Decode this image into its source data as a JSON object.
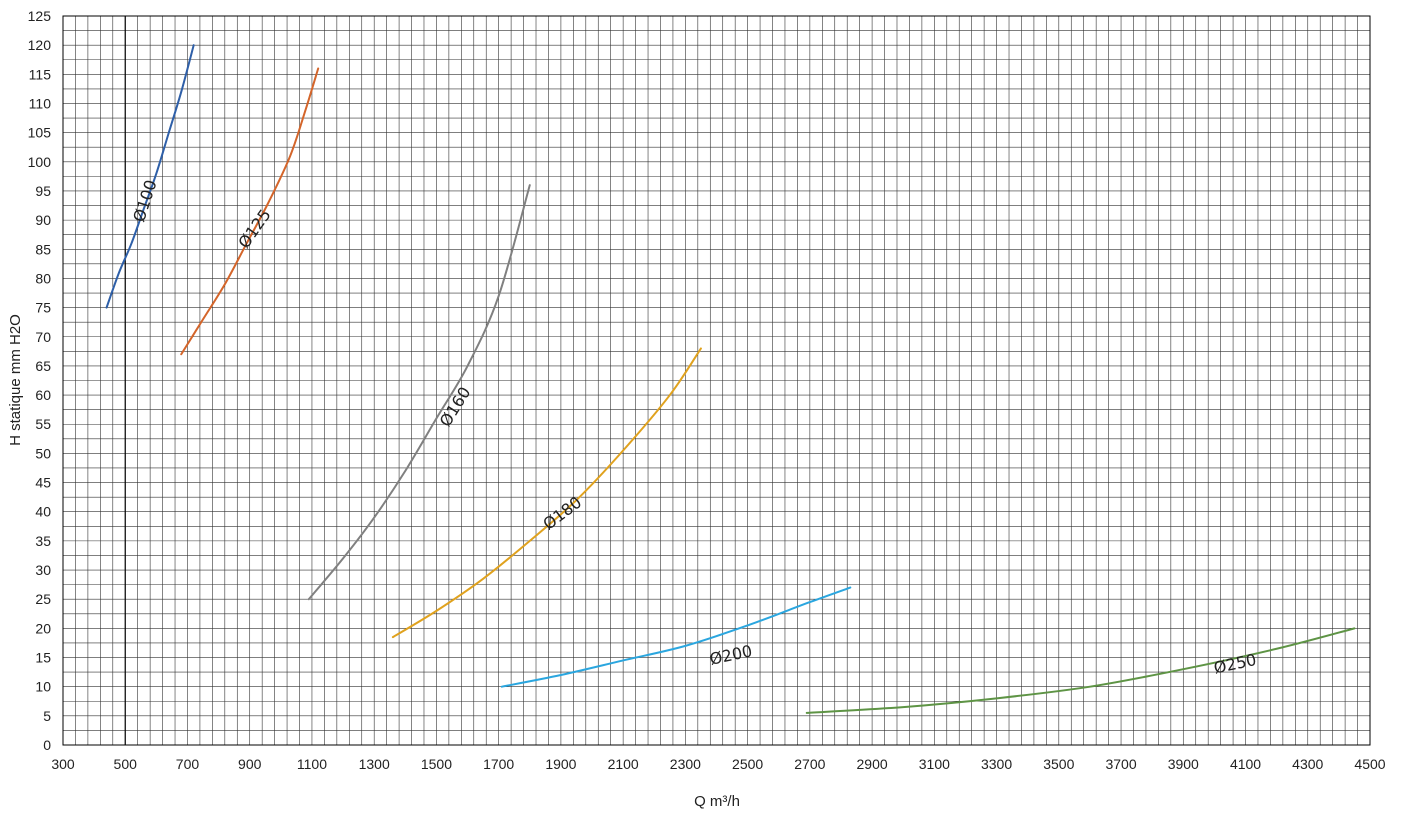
{
  "chart_data": {
    "type": "line",
    "xlabel": "Q m³/h",
    "ylabel": "H statique mm H2O",
    "xlim": [
      300,
      4500
    ],
    "ylim": [
      0,
      125
    ],
    "x_ticks": [
      300,
      500,
      700,
      900,
      1100,
      1300,
      1500,
      1700,
      1900,
      2100,
      2300,
      2500,
      2700,
      2900,
      3100,
      3300,
      3500,
      3700,
      3900,
      4100,
      4300,
      4500
    ],
    "y_ticks": [
      0,
      5,
      10,
      15,
      20,
      25,
      30,
      35,
      40,
      45,
      50,
      55,
      60,
      65,
      70,
      75,
      80,
      85,
      90,
      95,
      100,
      105,
      110,
      115,
      120,
      125
    ],
    "grid": true,
    "grid_minor_x": 40,
    "grid_minor_y": 2.5,
    "series": [
      {
        "name": "Ø100",
        "color": "#2e5fa8",
        "x": [
          440,
          480,
          520,
          560,
          600,
          640,
          680,
          720
        ],
        "y": [
          75,
          81,
          86,
          92,
          98,
          105,
          112,
          120
        ]
      },
      {
        "name": "Ø125",
        "color": "#d4652a",
        "x": [
          680,
          750,
          820,
          890,
          960,
          1030,
          1080,
          1120
        ],
        "y": [
          67,
          73,
          79,
          86,
          93,
          101,
          109,
          116
        ]
      },
      {
        "name": "Ø160",
        "color": "#808080",
        "x": [
          1090,
          1200,
          1300,
          1400,
          1500,
          1600,
          1700,
          1800
        ],
        "y": [
          25,
          32,
          39,
          47,
          56,
          65,
          77,
          96
        ]
      },
      {
        "name": "Ø180",
        "color": "#e0a21e",
        "x": [
          1360,
          1500,
          1650,
          1800,
          1950,
          2100,
          2250,
          2350
        ],
        "y": [
          18.5,
          23,
          28.5,
          35,
          42,
          50.5,
          60,
          68
        ]
      },
      {
        "name": "Ø200",
        "color": "#2aa6df",
        "x": [
          1710,
          1900,
          2100,
          2300,
          2500,
          2700,
          2830
        ],
        "y": [
          10,
          12,
          14.5,
          17,
          20.5,
          24.5,
          27
        ]
      },
      {
        "name": "Ø250",
        "color": "#5e9445",
        "x": [
          2690,
          3000,
          3300,
          3600,
          3900,
          4200,
          4450
        ],
        "y": [
          5.5,
          6.5,
          8,
          10,
          13,
          16.5,
          20
        ]
      }
    ],
    "annotations": [
      {
        "text": "Ø100",
        "x": 580,
        "y": 93,
        "angle": -72
      },
      {
        "text": "Ø125",
        "x": 930,
        "y": 88,
        "angle": -55
      },
      {
        "text": "Ø160",
        "x": 1575,
        "y": 57.5,
        "angle": -58
      },
      {
        "text": "Ø180",
        "x": 1915,
        "y": 39,
        "angle": -37
      },
      {
        "text": "Ø200",
        "x": 2450,
        "y": 14.5,
        "angle": -12
      },
      {
        "text": "Ø250",
        "x": 4070,
        "y": 13,
        "angle": -12
      }
    ]
  }
}
